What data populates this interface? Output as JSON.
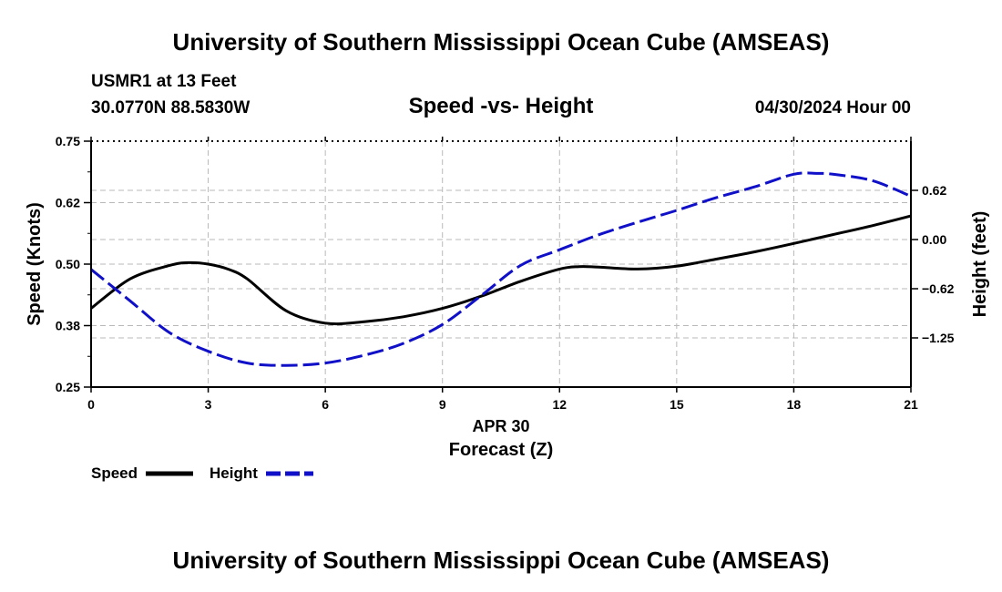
{
  "header": {
    "title": "University of Southern Mississippi Ocean Cube (AMSEAS)",
    "station": "USMR1 at 13 Feet",
    "coordinates": "30.0770N  88.5830W",
    "date": "04/30/2024 Hour 00"
  },
  "footer": {
    "title": "University of Southern Mississippi Ocean Cube (AMSEAS)"
  },
  "chart_data": {
    "type": "line",
    "title": "Speed -vs- Height",
    "xlabel_date": "APR 30",
    "xlabel": "Forecast (Z)",
    "ylabel_left": "Speed (Knots)",
    "ylabel_right": "Height (feet)",
    "xlim": [
      0,
      21
    ],
    "ylim_left": [
      0.25,
      0.75
    ],
    "ylim_right": [
      -1.875,
      1.25
    ],
    "x_ticks": [
      0,
      3,
      6,
      9,
      12,
      15,
      18,
      21
    ],
    "x_tick_labels": [
      "0",
      "3",
      "6",
      "9",
      "12",
      "15",
      "18",
      "21"
    ],
    "y_ticks_left": [
      0.25,
      0.375,
      0.5,
      0.625,
      0.75
    ],
    "y_tick_labels_left": [
      "0.25",
      "0.38",
      "0.50",
      "0.62",
      "0.75"
    ],
    "y_ticks_right": [
      -1.25,
      -0.625,
      0,
      0.625
    ],
    "y_tick_labels_right": [
      "−1.25",
      "−0.62",
      "0.00",
      "0.62"
    ],
    "grid": true,
    "legend": {
      "placement": "bottom-left",
      "entries": [
        "Speed",
        "Height"
      ]
    },
    "series": [
      {
        "name": "Speed",
        "axis": "left",
        "color": "#000000",
        "style": "solid",
        "x": [
          0,
          1,
          2,
          2.5,
          3,
          3.5,
          4,
          5,
          6,
          7,
          8,
          9,
          10,
          11,
          12,
          12.5,
          13,
          14,
          15,
          16,
          17,
          18,
          19,
          20,
          21
        ],
        "values": [
          0.41,
          0.47,
          0.497,
          0.503,
          0.5,
          0.49,
          0.47,
          0.405,
          0.38,
          0.383,
          0.393,
          0.41,
          0.435,
          0.465,
          0.49,
          0.495,
          0.494,
          0.49,
          0.496,
          0.51,
          0.525,
          0.542,
          0.56,
          0.578,
          0.598
        ]
      },
      {
        "name": "Height",
        "axis": "right",
        "color": "#1010c8",
        "style": "dashed",
        "x": [
          0,
          1,
          2,
          3,
          4,
          5,
          6,
          7,
          8,
          9,
          10,
          11,
          12,
          13,
          14,
          15,
          16,
          17,
          18,
          18.6,
          19,
          20,
          21
        ],
        "values": [
          -0.38,
          -0.78,
          -1.18,
          -1.42,
          -1.57,
          -1.6,
          -1.57,
          -1.47,
          -1.32,
          -1.08,
          -0.71,
          -0.33,
          -0.13,
          0.06,
          0.22,
          0.37,
          0.53,
          0.67,
          0.83,
          0.84,
          0.83,
          0.75,
          0.55
        ]
      }
    ]
  }
}
